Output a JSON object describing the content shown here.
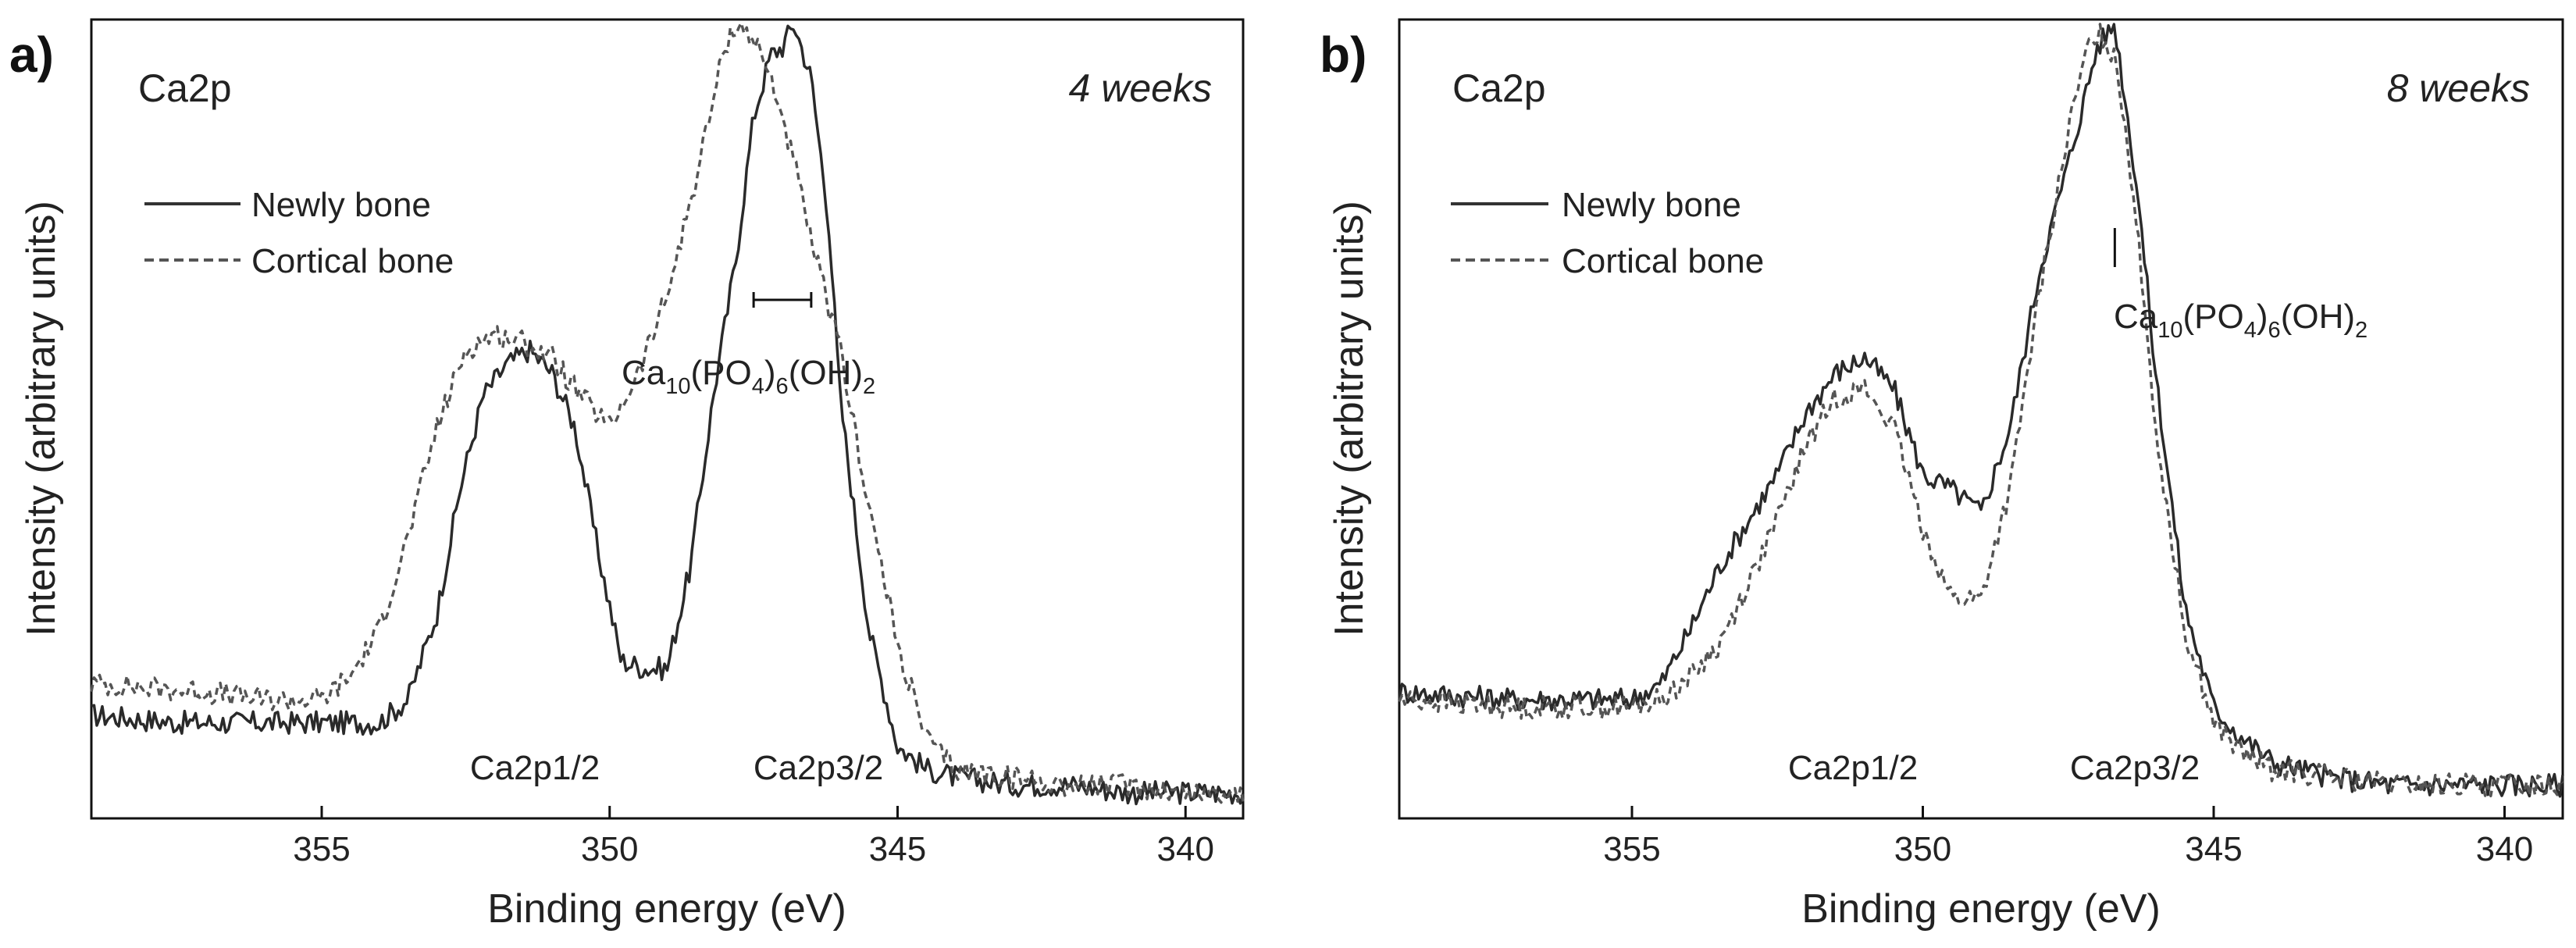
{
  "figure": {
    "panels": [
      {
        "letter": "a)",
        "element": "Ca2p",
        "time": "4 weeks",
        "legend": [
          "Newly bone",
          "Cortical bone"
        ],
        "annotation": {
          "text": "Ca10(PO4)6(OH)2",
          "marker": "range bar"
        },
        "peak_labels": [
          "Ca2p1/2",
          "Ca2p3/2"
        ]
      },
      {
        "letter": "b)",
        "element": "Ca2p",
        "time": "8 weeks",
        "legend": [
          "Newly bone",
          "Cortical bone"
        ],
        "annotation": {
          "text": "Ca10(PO4)6(OH)2",
          "marker": "tick"
        },
        "peak_labels": [
          "Ca2p1/2",
          "Ca2p3/2"
        ]
      }
    ]
  },
  "chart_data": [
    {
      "type": "line",
      "title": "Ca2p",
      "subtitle": "4 weeks",
      "xlabel": "Binding energy (eV)",
      "ylabel": "Intensity (arbitrary units)",
      "xlim": [
        359,
        339
      ],
      "x_reversed": true,
      "ylim": [
        0,
        1
      ],
      "xticks": [
        355,
        350,
        345,
        340
      ],
      "grid": false,
      "legend_position": "top-left",
      "annotation_ev": [
        347.5,
        346.5
      ],
      "series": [
        {
          "name": "Newly bone",
          "style": "solid",
          "x": [
            359,
            357.5,
            356,
            355,
            354,
            353.5,
            353,
            352.6,
            352.2,
            351.8,
            351.4,
            351,
            350.6,
            350.2,
            349.8,
            349.4,
            349,
            348.6,
            348.2,
            347.8,
            347.5,
            347.2,
            347,
            346.8,
            346.5,
            346.2,
            346,
            345.5,
            345,
            344.5,
            344,
            343,
            342,
            341,
            340,
            339
          ],
          "y": [
            0.11,
            0.1,
            0.1,
            0.1,
            0.1,
            0.13,
            0.24,
            0.4,
            0.52,
            0.56,
            0.58,
            0.55,
            0.48,
            0.32,
            0.18,
            0.17,
            0.17,
            0.3,
            0.52,
            0.7,
            0.88,
            0.96,
            0.97,
            1.0,
            0.93,
            0.75,
            0.52,
            0.22,
            0.07,
            0.04,
            0.03,
            0.02,
            0.02,
            0.01,
            0.01,
            0.01
          ]
        },
        {
          "name": "Cortical bone",
          "style": "dashed",
          "x": [
            359,
            357,
            356,
            355,
            354.5,
            354,
            353.5,
            353,
            352.5,
            352,
            351.5,
            351,
            350.5,
            350,
            349.5,
            349,
            348.5,
            348,
            347.8,
            347.5,
            347.2,
            347,
            346.8,
            346.5,
            346,
            345.5,
            345,
            344.5,
            344,
            343,
            342,
            341,
            340,
            339
          ],
          "y": [
            0.15,
            0.14,
            0.13,
            0.13,
            0.16,
            0.22,
            0.34,
            0.48,
            0.58,
            0.6,
            0.59,
            0.57,
            0.52,
            0.48,
            0.55,
            0.65,
            0.8,
            0.97,
            1.0,
            0.98,
            0.93,
            0.88,
            0.82,
            0.72,
            0.58,
            0.38,
            0.2,
            0.08,
            0.04,
            0.03,
            0.02,
            0.02,
            0.01,
            0.01
          ]
        }
      ]
    },
    {
      "type": "line",
      "title": "Ca2p",
      "subtitle": "8 weeks",
      "xlabel": "Binding energy (eV)",
      "ylabel": "Intensity (arbitrary units)",
      "xlim": [
        359,
        339
      ],
      "x_reversed": true,
      "ylim": [
        0,
        1
      ],
      "xticks": [
        355,
        350,
        345,
        340
      ],
      "grid": false,
      "legend_position": "top-left",
      "annotation_ev": [
        346.7
      ],
      "series": [
        {
          "name": "Newly bone",
          "style": "solid",
          "x": [
            359,
            357,
            356,
            355,
            354.5,
            354,
            353.5,
            353,
            352.5,
            352,
            351.5,
            351,
            350.5,
            350,
            349.5,
            349,
            348.5,
            348,
            347.5,
            347,
            346.7,
            346.3,
            346,
            345.5,
            345,
            344.5,
            344,
            343,
            342,
            341,
            340,
            339
          ],
          "y": [
            0.14,
            0.13,
            0.13,
            0.13,
            0.15,
            0.22,
            0.3,
            0.36,
            0.42,
            0.5,
            0.55,
            0.57,
            0.53,
            0.42,
            0.4,
            0.37,
            0.48,
            0.68,
            0.82,
            0.97,
            1.0,
            0.78,
            0.55,
            0.25,
            0.12,
            0.08,
            0.05,
            0.03,
            0.02,
            0.02,
            0.02,
            0.02
          ]
        },
        {
          "name": "Cortical bone",
          "style": "dashed",
          "x": [
            359,
            357,
            356,
            355,
            354.5,
            354,
            353.5,
            353,
            352.5,
            352,
            351.5,
            351,
            350.5,
            350,
            349.5,
            349,
            348.5,
            348,
            347.5,
            347.2,
            347,
            346.7,
            346.5,
            346.2,
            346,
            345.5,
            345,
            344.5,
            344,
            343,
            342,
            341,
            340,
            339
          ],
          "y": [
            0.13,
            0.12,
            0.12,
            0.12,
            0.13,
            0.16,
            0.2,
            0.28,
            0.36,
            0.46,
            0.52,
            0.53,
            0.48,
            0.35,
            0.26,
            0.26,
            0.4,
            0.65,
            0.86,
            0.96,
            0.99,
            0.96,
            0.86,
            0.65,
            0.48,
            0.22,
            0.1,
            0.06,
            0.04,
            0.03,
            0.02,
            0.02,
            0.02,
            0.02
          ]
        }
      ]
    }
  ]
}
